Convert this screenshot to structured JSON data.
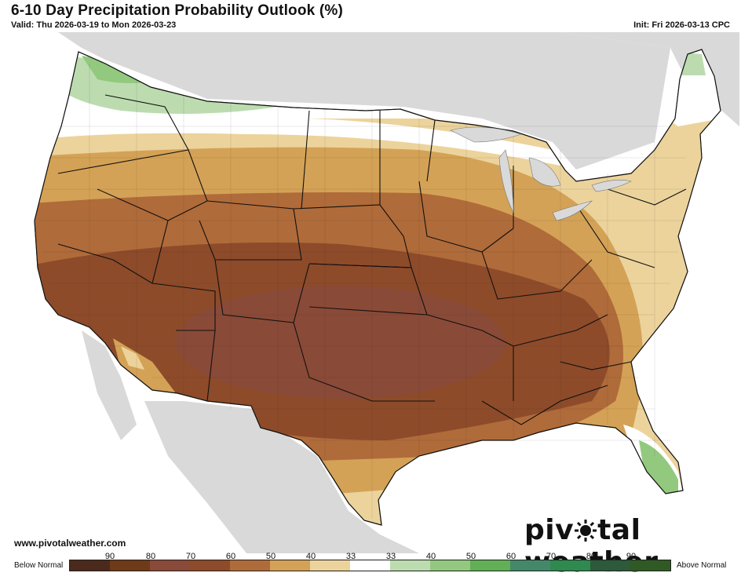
{
  "header": {
    "title": "6-10 Day Precipitation Probability Outlook (%)",
    "valid": "Valid: Thu 2026-03-19 to Mon 2026-03-23",
    "init": "Init: Fri 2026-03-13 CPC"
  },
  "footer": {
    "url": "www.pivotalweather.com",
    "brand_left": "piv",
    "brand_right": "tal weather"
  },
  "legend": {
    "below_label": "Below Normal",
    "above_label": "Above Normal",
    "ticks": [
      "90",
      "80",
      "70",
      "60",
      "50",
      "40",
      "33",
      "33",
      "40",
      "50",
      "60",
      "70",
      "80",
      "90"
    ],
    "colors": [
      "#4b2a1c",
      "#6e3a18",
      "#8a4a3a",
      "#8d4b2a",
      "#b06b3a",
      "#d4a256",
      "#ecd39c",
      "#ffffff",
      "#bcdcb0",
      "#92c97e",
      "#62b055",
      "#44886a",
      "#2e8a4e",
      "#2c5a3a",
      "#2f5a24"
    ]
  },
  "map": {
    "categories": [
      {
        "label": "Below Normal 33-40",
        "color": "#ecd39c"
      },
      {
        "label": "Below Normal 40-50",
        "color": "#d4a256"
      },
      {
        "label": "Below Normal 50-60",
        "color": "#b06b3a"
      },
      {
        "label": "Below Normal 60-70",
        "color": "#8d4b2a"
      },
      {
        "label": "Below Normal 70-80",
        "color": "#8a4a3a"
      },
      {
        "label": "Near Normal",
        "color": "#ffffff"
      },
      {
        "label": "Above Normal 33-40",
        "color": "#bcdcb0"
      },
      {
        "label": "Above Normal 40-50",
        "color": "#92c97e"
      }
    ]
  }
}
